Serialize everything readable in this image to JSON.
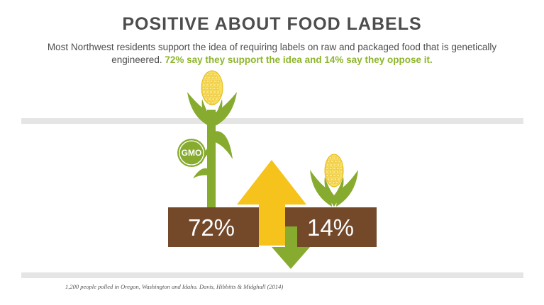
{
  "title": "POSITIVE ABOUT FOOD LABELS",
  "subtitle": {
    "intro": "Most Northwest residents support the idea of requiring labels on raw and packaged food that is genetically engineered.",
    "highlight": "72% say they support the idea and 14% say they oppose it."
  },
  "colors": {
    "title": "#4d4d4d",
    "highlight": "#8db52c",
    "support_arrow": "#f6c21c",
    "oppose_arrow": "#86ab2e",
    "box": "#73492a",
    "band": "#e5e5e5",
    "corn_leaf": "#86ab2e",
    "corn_kernel": "#f8df5a"
  },
  "gmo_badge": "GMO",
  "chart_data": {
    "type": "bar",
    "categories": [
      "Support",
      "Oppose"
    ],
    "values": [
      72,
      14
    ],
    "value_labels": [
      "72%",
      "14%"
    ],
    "icons": [
      "tall-gmo-corn-stalk",
      "small-corn"
    ],
    "footnote": "1,200 people polled in Oregon, Washington and Idaho. Davis, Hibbitts & Midghall (2014)"
  }
}
